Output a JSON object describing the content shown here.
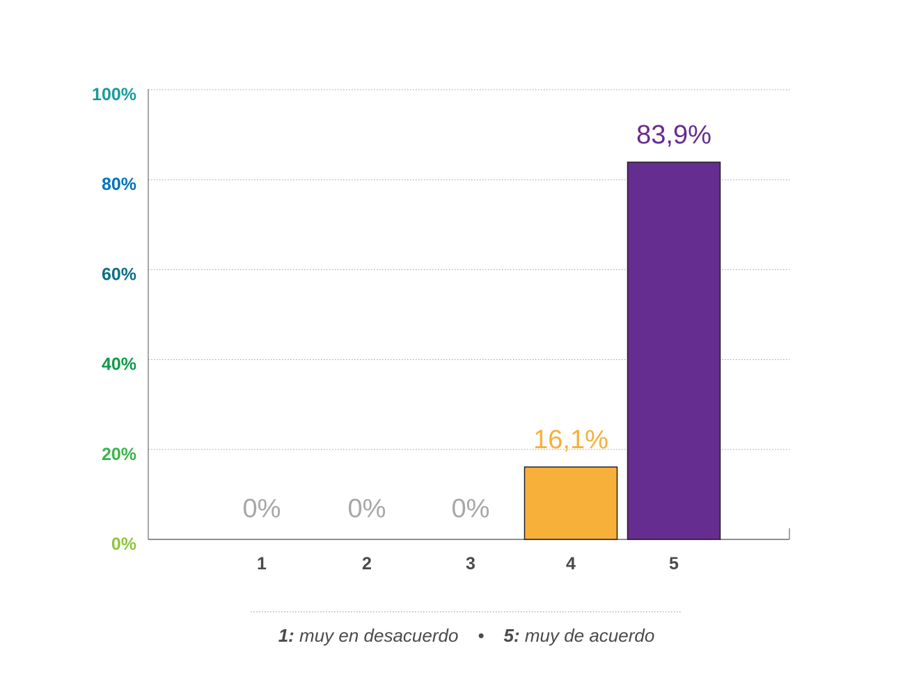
{
  "chart_data": {
    "type": "bar",
    "categories": [
      "1",
      "2",
      "3",
      "4",
      "5"
    ],
    "values": [
      0,
      0,
      0,
      16.1,
      83.9
    ],
    "value_labels": [
      "0%",
      "0%",
      "0%",
      "16,1%",
      "83,9%"
    ],
    "bar_colors": [
      "#9e9e9e",
      "#9e9e9e",
      "#9e9e9e",
      "#f7b03a",
      "#652d8f"
    ],
    "value_label_colors": [
      "#a7a7a7",
      "#a7a7a7",
      "#a7a7a7",
      "#f7b03a",
      "#652d8f"
    ],
    "ylim": [
      0,
      100
    ],
    "yticks": [
      0,
      20,
      40,
      60,
      80,
      100
    ],
    "ytick_labels": [
      "0%",
      "20%",
      "40%",
      "60%",
      "80%",
      "100%"
    ],
    "ytick_colors": [
      "#8dc63f",
      "#39b54a",
      "#0f9a4a",
      "#0e6e8a",
      "#0072bc",
      "#1a9a9a"
    ],
    "grid": true,
    "grid_style": "dotted",
    "xlabel": "",
    "ylabel": "",
    "title": ""
  },
  "legend": {
    "low_key": "1:",
    "low_text": " muy en desacuerdo",
    "separator": "•",
    "high_key": "5:",
    "high_text": " muy de acuerdo"
  }
}
